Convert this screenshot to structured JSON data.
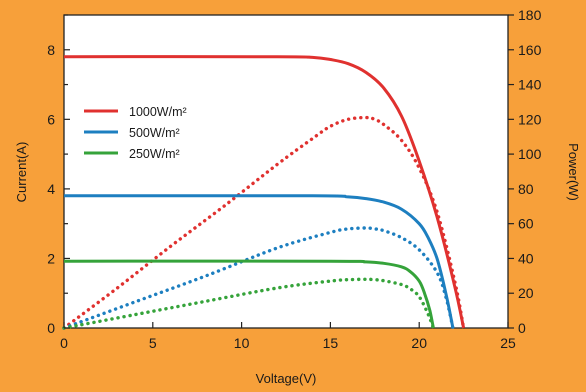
{
  "chart_data": {
    "type": "line",
    "title": "",
    "xlabel": "Voltage(V)",
    "ylabel_left": "Current(A)",
    "ylabel_right": "Power(W)",
    "xlim": [
      0,
      25
    ],
    "ylim_left": [
      0,
      9
    ],
    "ylim_right": [
      0,
      180
    ],
    "x_ticks": [
      0,
      5,
      10,
      15,
      20,
      25
    ],
    "y_left_ticks": [
      0,
      2,
      4,
      6,
      8
    ],
    "y_right_ticks": [
      0,
      20,
      40,
      60,
      80,
      100,
      120,
      140,
      160,
      180
    ],
    "grid": false,
    "legend_position": "upper-left",
    "series": [
      {
        "name": "1000W/m²",
        "color": "#e0312f",
        "current": {
          "axis": "left",
          "style": "solid",
          "x": [
            0,
            12,
            14,
            15,
            16,
            17,
            18,
            19,
            20,
            21,
            22,
            22.5
          ],
          "y": [
            7.8,
            7.8,
            7.78,
            7.72,
            7.6,
            7.35,
            6.9,
            6.1,
            4.8,
            3.2,
            1.2,
            0
          ]
        },
        "power": {
          "axis": "right",
          "style": "dotted",
          "x": [
            0,
            3,
            6,
            9,
            12,
            14,
            15,
            16,
            17,
            17.5,
            18,
            19,
            20,
            21,
            22,
            22.5
          ],
          "y": [
            0,
            23,
            47,
            70,
            94,
            109,
            116,
            120,
            121,
            120,
            117,
            108,
            92,
            67,
            27,
            0
          ]
        }
      },
      {
        "name": "500W/m²",
        "color": "#1d7fc0",
        "current": {
          "axis": "left",
          "style": "solid",
          "x": [
            0,
            14,
            16,
            17,
            18,
            19,
            20,
            20.5,
            21,
            21.5,
            21.9
          ],
          "y": [
            3.8,
            3.8,
            3.77,
            3.72,
            3.62,
            3.42,
            3.0,
            2.6,
            2.0,
            1.0,
            0
          ]
        },
        "power": {
          "axis": "right",
          "style": "dotted",
          "x": [
            0,
            4,
            8,
            12,
            15,
            16,
            17,
            17.5,
            18,
            19,
            20,
            21,
            21.5,
            21.9
          ],
          "y": [
            0,
            15,
            30,
            46,
            55,
            57,
            57.5,
            57,
            56,
            52,
            45,
            32,
            18,
            0
          ]
        }
      },
      {
        "name": "250W/m²",
        "color": "#35a33a",
        "current": {
          "axis": "left",
          "style": "solid",
          "x": [
            0,
            15,
            17,
            18,
            19,
            19.5,
            20,
            20.3,
            20.6,
            20.8
          ],
          "y": [
            1.92,
            1.92,
            1.9,
            1.86,
            1.76,
            1.62,
            1.35,
            1.0,
            0.5,
            0
          ]
        },
        "power": {
          "axis": "right",
          "style": "dotted",
          "x": [
            0,
            4,
            8,
            12,
            15,
            16,
            17,
            17.5,
            18,
            19,
            19.5,
            20,
            20.5,
            20.8
          ],
          "y": [
            0,
            7.7,
            15.4,
            23,
            27,
            27.8,
            28,
            27.8,
            27.2,
            25,
            22.5,
            18,
            8,
            0
          ]
        }
      }
    ]
  }
}
